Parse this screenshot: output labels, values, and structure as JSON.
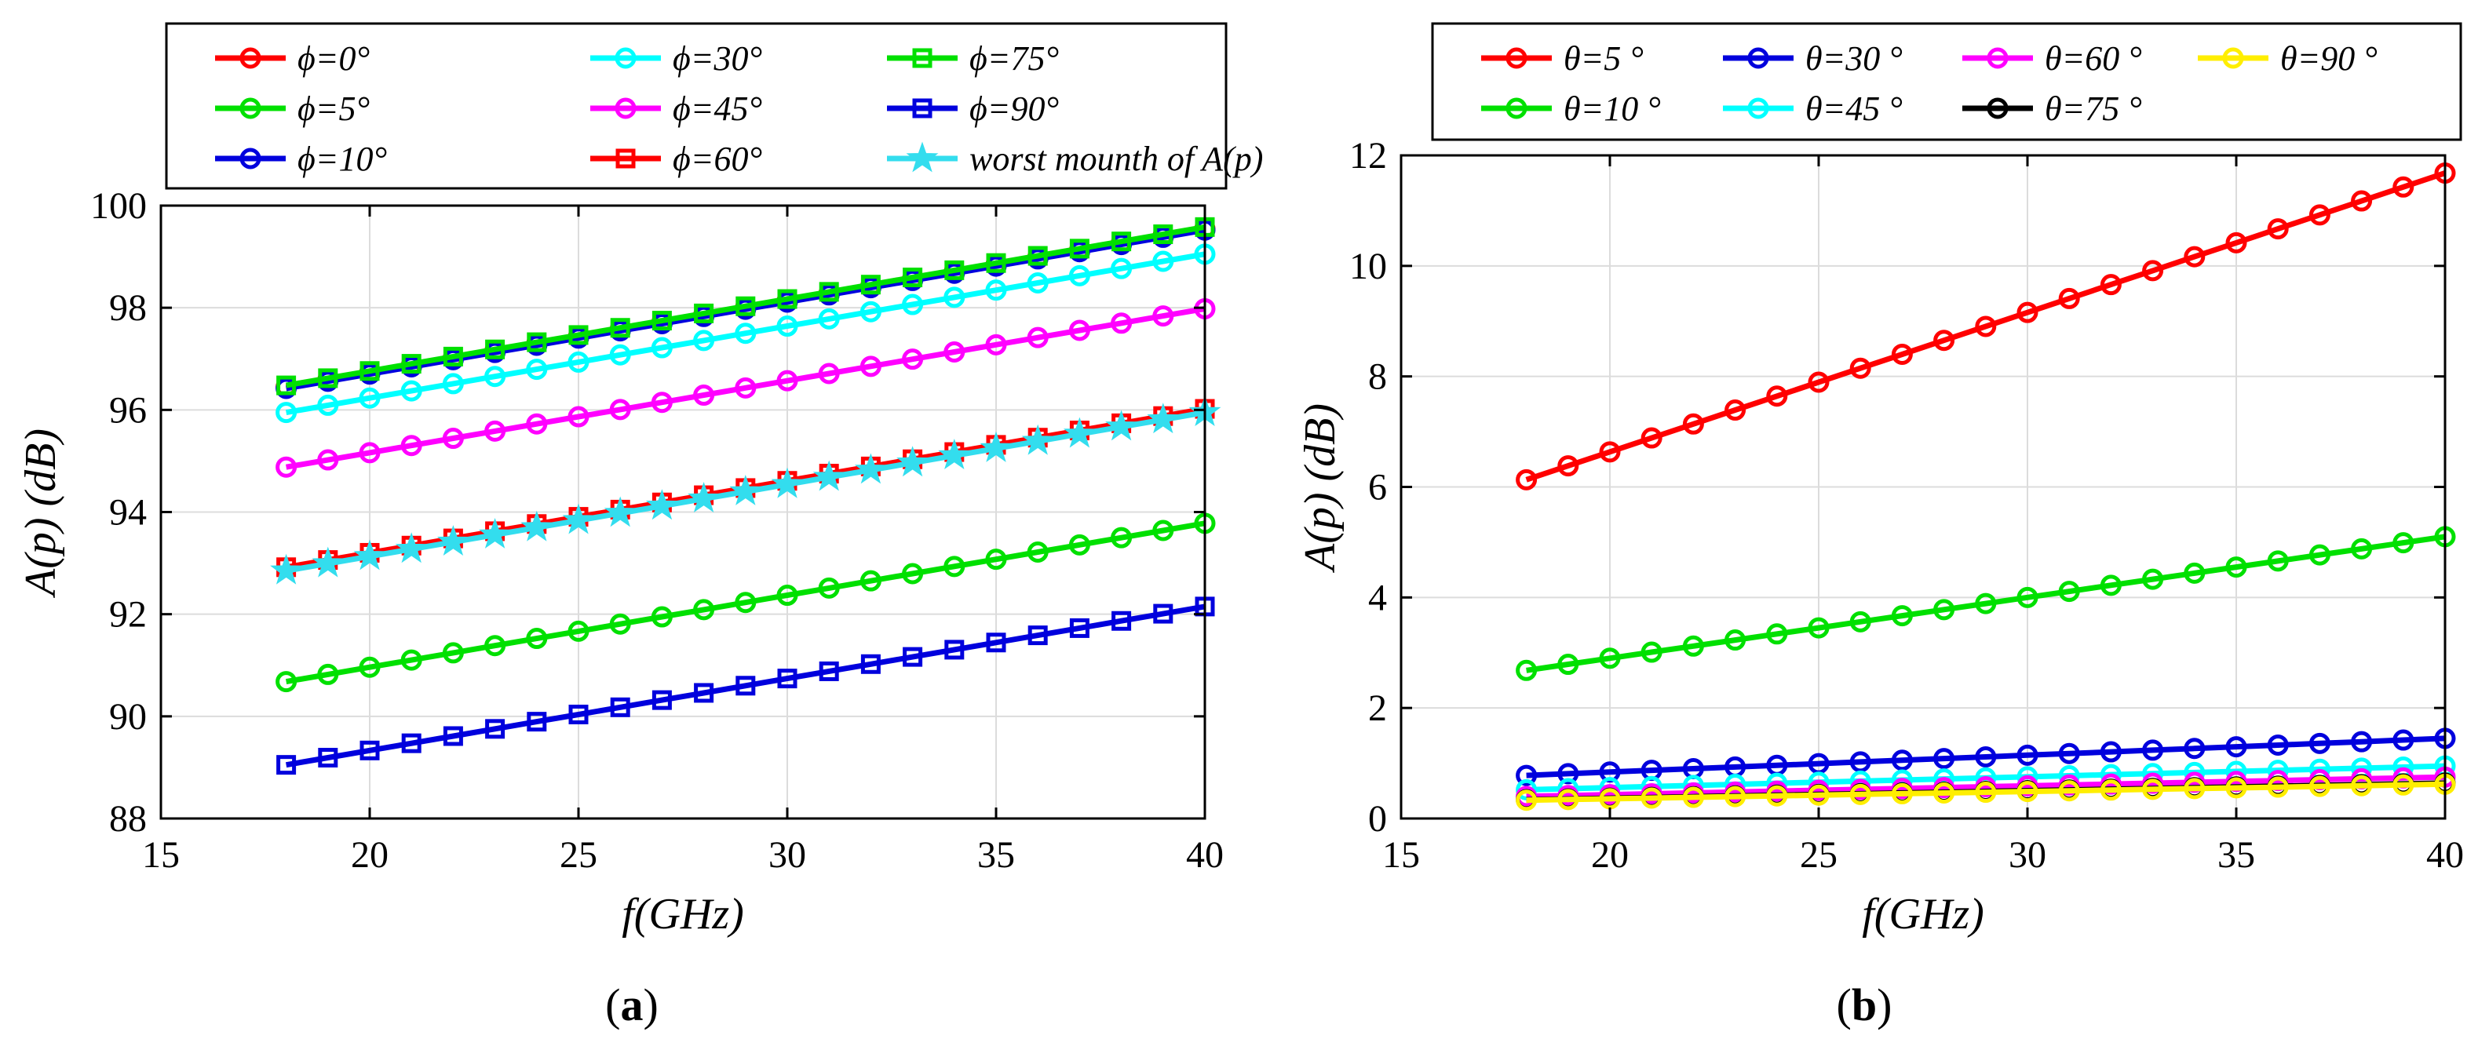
{
  "chart_data": [
    {
      "type": "line",
      "panel_label_prefix": "(",
      "panel_label_letter": "a",
      "panel_label_suffix": ")",
      "xlabel": "f(GHz)",
      "ylabel": "A(p) (dB)",
      "xlim": [
        15,
        40
      ],
      "ylim": [
        88,
        100
      ],
      "xticks": [
        "15",
        "20",
        "25",
        "30",
        "35",
        "40"
      ],
      "yticks": [
        "88",
        "90",
        "92",
        "94",
        "96",
        "98",
        "100"
      ],
      "x": [
        18,
        19,
        20,
        21,
        22,
        23,
        24,
        25,
        26,
        27,
        28,
        29,
        30,
        31,
        32,
        33,
        34,
        35,
        36,
        37,
        38,
        39,
        40
      ],
      "grid": true,
      "legend_position": "top",
      "series": [
        {
          "name": "ϕ=0°",
          "color": "#ff0000",
          "marker": "circle",
          "y_start": 96.45,
          "y_end": 99.55
        },
        {
          "name": "ϕ=5°",
          "color": "#00e000",
          "marker": "circle",
          "y_start": 90.68,
          "y_end": 93.78
        },
        {
          "name": "ϕ=10°",
          "color": "#0000dd",
          "marker": "circle",
          "y_start": 96.42,
          "y_end": 99.52
        },
        {
          "name": "ϕ=30°",
          "color": "#00ffff",
          "marker": "circle",
          "y_start": 95.95,
          "y_end": 99.05
        },
        {
          "name": "ϕ=45°",
          "color": "#ff00ff",
          "marker": "circle",
          "y_start": 94.88,
          "y_end": 97.98
        },
        {
          "name": "ϕ=60°",
          "color": "#ff0000",
          "marker": "square",
          "y_start": 92.92,
          "y_end": 96.02
        },
        {
          "name": "ϕ=75°",
          "color": "#00e000",
          "marker": "square",
          "y_start": 96.48,
          "y_end": 99.58
        },
        {
          "name": "ϕ=90°",
          "color": "#0000dd",
          "marker": "square",
          "y_start": 89.05,
          "y_end": 92.15
        },
        {
          "name": "worst mounth of A(p)",
          "color": "#33ddee",
          "marker": "star",
          "y_start": 92.85,
          "y_end": 95.95
        }
      ]
    },
    {
      "type": "line",
      "panel_label_prefix": "(",
      "panel_label_letter": "b",
      "panel_label_suffix": ")",
      "xlabel": "f(GHz)",
      "ylabel": "A(p) (dB)",
      "xlim": [
        15,
        40
      ],
      "ylim": [
        0,
        12
      ],
      "xticks": [
        "15",
        "20",
        "25",
        "30",
        "35",
        "40"
      ],
      "yticks": [
        "0",
        "2",
        "4",
        "6",
        "8",
        "10",
        "12"
      ],
      "x": [
        18,
        19,
        20,
        21,
        22,
        23,
        24,
        25,
        26,
        27,
        28,
        29,
        30,
        31,
        32,
        33,
        34,
        35,
        36,
        37,
        38,
        39,
        40
      ],
      "grid": true,
      "legend_position": "top",
      "series": [
        {
          "name": "θ=5 °",
          "color": "#ff0000",
          "marker": "circle",
          "y_start": 6.13,
          "y_end": 11.68
        },
        {
          "name": "θ=10 °",
          "color": "#00e000",
          "marker": "circle",
          "y_start": 2.68,
          "y_end": 5.1
        },
        {
          "name": "θ=30 °",
          "color": "#0000dd",
          "marker": "circle",
          "y_start": 0.78,
          "y_end": 1.45
        },
        {
          "name": "θ=45 °",
          "color": "#00ffff",
          "marker": "circle",
          "y_start": 0.52,
          "y_end": 0.95
        },
        {
          "name": "θ=60 °",
          "color": "#ff00ff",
          "marker": "circle",
          "y_start": 0.4,
          "y_end": 0.75
        },
        {
          "name": "θ=75 °",
          "color": "#000000",
          "marker": "circle",
          "y_start": 0.34,
          "y_end": 0.64
        },
        {
          "name": "θ=90 °",
          "color": "#ffee00",
          "marker": "circle",
          "y_start": 0.33,
          "y_end": 0.62
        }
      ]
    }
  ]
}
